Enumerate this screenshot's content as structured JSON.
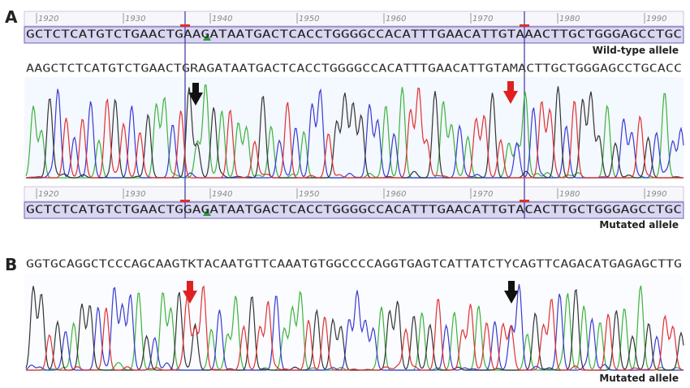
{
  "panel_a": {
    "label": "A",
    "ruler_top": [
      "1920",
      "1930",
      "1940",
      "1950",
      "1960",
      "1970",
      "1980",
      "1990"
    ],
    "reference_wild_type": "GCTCTCATGTCTGAACTGAAGATAATGACTCACCTGGGGCCACATTTGAACATTGTAAACTTGCTGGGAGCCTGC",
    "wild_type_label": "Wild-type allele",
    "read": "AAGCTCTCATGTCTGAACTGRAGATAATGACTCACCTGGGGCCACATTTGAACATTGTAMACTTGCTGGGAGCCTGCACC",
    "ruler_bottom": [
      "1920",
      "1930",
      "1940",
      "1950",
      "1960",
      "1970",
      "1980",
      "1990"
    ],
    "reference_mutated": "GCTCTCATGTCTGAACTGGAGATAATGACTCACCTGGGGCCACATTTGAACATTGTACACTTGCTGGGAGCCTGC",
    "mutated_label": "Mutated allele"
  },
  "panel_b": {
    "label": "B",
    "read": "GGTGCAGGCTCCCAGCAAGTKTACAATGTTCAAATGTGGCCCCAGGTGAGTCATTATCTYCAGTTCAGACATGAGAGCTTG",
    "mutated_label": "Mutated allele"
  }
}
